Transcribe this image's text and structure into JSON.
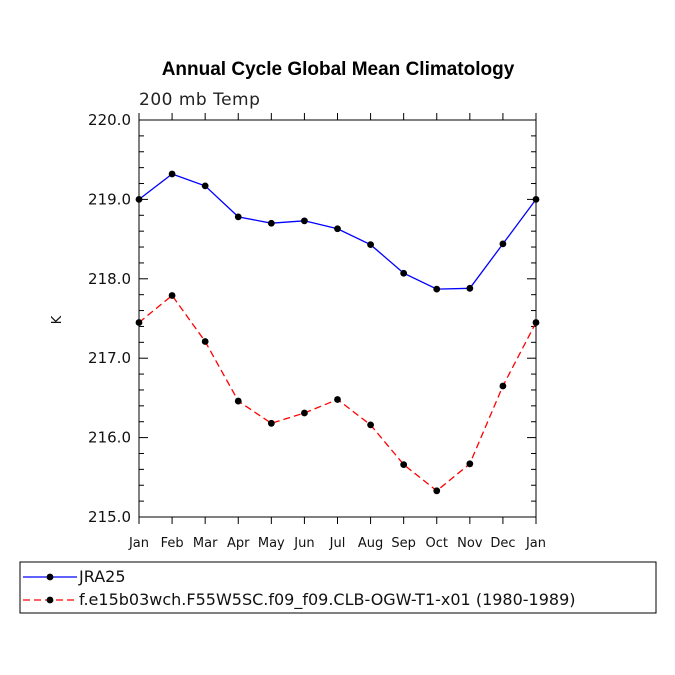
{
  "chart_data": {
    "type": "line",
    "title": "Annual Cycle Global Mean Climatology",
    "subtitle": "200 mb Temp",
    "xlabel": "",
    "ylabel": "K",
    "categories": [
      "Jan",
      "Feb",
      "Mar",
      "Apr",
      "May",
      "Jun",
      "Jul",
      "Aug",
      "Sep",
      "Oct",
      "Nov",
      "Dec",
      "Jan"
    ],
    "ylim": [
      215.0,
      220.0
    ],
    "ytick_labels": [
      "215.0",
      "216.0",
      "217.0",
      "218.0",
      "219.0",
      "220.0"
    ],
    "grid": false,
    "legend_position": "bottom",
    "series": [
      {
        "name": "JRA25",
        "color": "#0000ff",
        "line_style": "solid",
        "marker_color": "#000000",
        "values": [
          219.0,
          219.32,
          219.17,
          218.78,
          218.7,
          218.73,
          218.63,
          218.43,
          218.07,
          217.87,
          217.88,
          218.44,
          219.0
        ]
      },
      {
        "name": "f.e15b03wch.F55W5SC.f09_f09.CLB-OGW-T1-x01 (1980-1989)",
        "color": "#ff0000",
        "line_style": "dashed",
        "marker_color": "#000000",
        "values": [
          217.45,
          217.79,
          217.21,
          216.46,
          216.18,
          216.31,
          216.48,
          216.16,
          215.66,
          215.33,
          215.67,
          216.65,
          217.45
        ]
      }
    ]
  }
}
